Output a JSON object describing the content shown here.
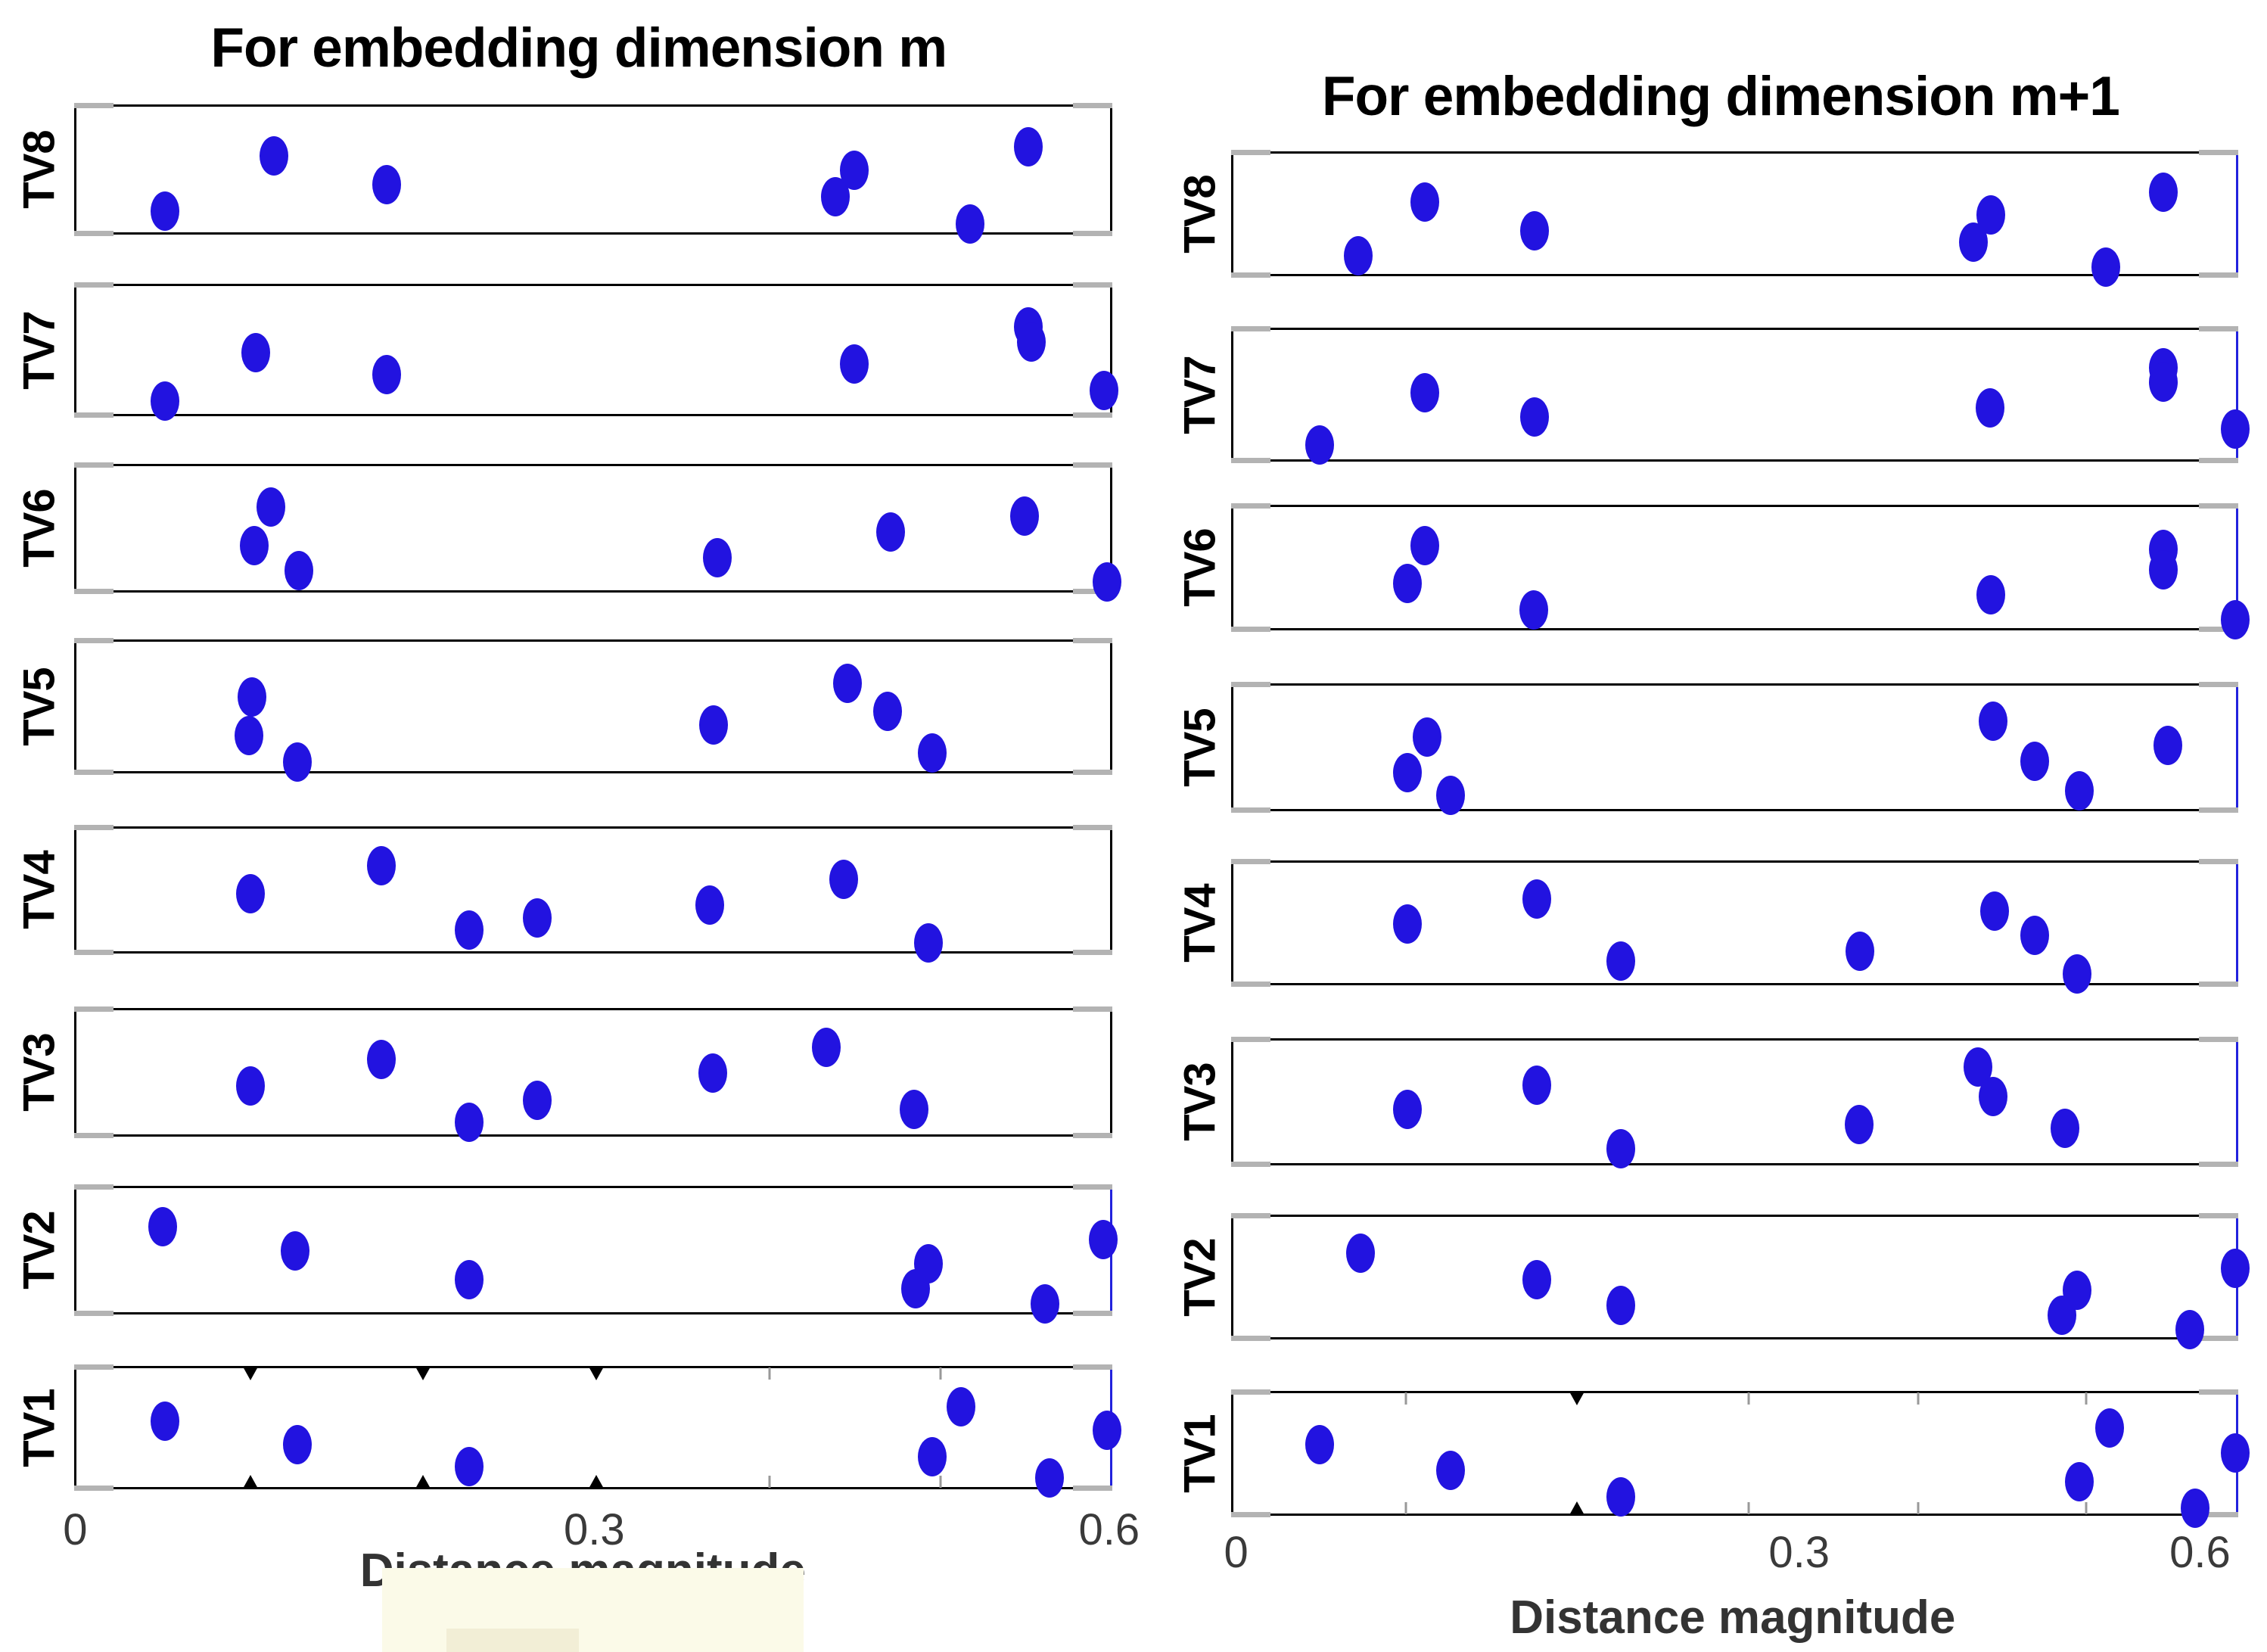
{
  "colors": {
    "background": "#ffffff",
    "dot": "#2213e0",
    "box_border": "#000000",
    "box_border_right_accent": "#2222dd",
    "corner_cap": "#b3b3b3",
    "tick_label": "#3a3a3a",
    "axis_minor_tick": "#999999",
    "watermark_main": "#fbfae8",
    "watermark_small": "#f2eed6"
  },
  "chart_data": [
    {
      "type": "scatter",
      "title": "For embedding dimension m",
      "xlabel": "Distance magnitude",
      "xlim": [
        0,
        0.62
      ],
      "x_tick_labels": [
        {
          "label": "0",
          "f": 0.001
        },
        {
          "label": "0.3",
          "f": 0.501
        },
        {
          "label": "0.6",
          "f": 0.997
        }
      ],
      "axis_marks": [
        {
          "f": 0.168,
          "style": "triangle"
        },
        {
          "f": 0.334,
          "style": "triangle"
        },
        {
          "f": 0.501,
          "style": "triangle"
        },
        {
          "f": 0.668,
          "style": "line"
        },
        {
          "f": 0.832,
          "style": "line"
        }
      ],
      "rows": [
        {
          "label": "TV8",
          "points": [
            {
              "v": 0.05,
              "f": 0.085,
              "j": 0.8
            },
            {
              "v": 0.114,
              "f": 0.19,
              "j": 0.38
            },
            {
              "v": 0.179,
              "f": 0.299,
              "j": 0.6
            },
            {
              "v": 0.44,
              "f": 0.731,
              "j": 0.69
            },
            {
              "v": 0.45,
              "f": 0.749,
              "j": 0.49
            },
            {
              "v": 0.518,
              "f": 0.861,
              "j": 0.9
            },
            {
              "v": 0.552,
              "f": 0.917,
              "j": 0.31
            }
          ]
        },
        {
          "label": "TV7",
          "points": [
            {
              "v": 0.05,
              "f": 0.085,
              "j": 0.87
            },
            {
              "v": 0.103,
              "f": 0.173,
              "j": 0.5
            },
            {
              "v": 0.179,
              "f": 0.299,
              "j": 0.67
            },
            {
              "v": 0.45,
              "f": 0.749,
              "j": 0.59
            },
            {
              "v": 0.552,
              "f": 0.917,
              "j": 0.31
            },
            {
              "v": 0.554,
              "f": 0.92,
              "j": 0.42
            },
            {
              "v": 0.602,
              "f": 0.99,
              "j": 0.79
            }
          ]
        },
        {
          "label": "TV6",
          "points": [
            {
              "v": 0.102,
              "f": 0.171,
              "j": 0.62
            },
            {
              "v": 0.112,
              "f": 0.187,
              "j": 0.32
            },
            {
              "v": 0.128,
              "f": 0.214,
              "j": 0.81
            },
            {
              "v": 0.371,
              "f": 0.617,
              "j": 0.71
            },
            {
              "v": 0.471,
              "f": 0.784,
              "j": 0.51
            },
            {
              "v": 0.549,
              "f": 0.913,
              "j": 0.39
            },
            {
              "v": 0.6,
              "f": 0.993,
              "j": 0.9
            }
          ]
        },
        {
          "label": "TV5",
          "points": [
            {
              "v": 0.099,
              "f": 0.166,
              "j": 0.7
            },
            {
              "v": 0.101,
              "f": 0.169,
              "j": 0.41
            },
            {
              "v": 0.127,
              "f": 0.213,
              "j": 0.9
            },
            {
              "v": 0.369,
              "f": 0.614,
              "j": 0.62
            },
            {
              "v": 0.447,
              "f": 0.743,
              "j": 0.31
            },
            {
              "v": 0.47,
              "f": 0.781,
              "j": 0.52
            },
            {
              "v": 0.496,
              "f": 0.824,
              "j": 0.83
            }
          ]
        },
        {
          "label": "TV4",
          "points": [
            {
              "v": 0.1,
              "f": 0.168,
              "j": 0.51
            },
            {
              "v": 0.176,
              "f": 0.294,
              "j": 0.29
            },
            {
              "v": 0.227,
              "f": 0.378,
              "j": 0.8
            },
            {
              "v": 0.267,
              "f": 0.444,
              "j": 0.7
            },
            {
              "v": 0.367,
              "f": 0.61,
              "j": 0.6
            },
            {
              "v": 0.444,
              "f": 0.739,
              "j": 0.4
            },
            {
              "v": 0.494,
              "f": 0.821,
              "j": 0.9
            }
          ]
        },
        {
          "label": "TV3",
          "points": [
            {
              "v": 0.1,
              "f": 0.168,
              "j": 0.59
            },
            {
              "v": 0.176,
              "f": 0.294,
              "j": 0.38
            },
            {
              "v": 0.227,
              "f": 0.378,
              "j": 0.87
            },
            {
              "v": 0.267,
              "f": 0.444,
              "j": 0.7
            },
            {
              "v": 0.368,
              "f": 0.613,
              "j": 0.49
            },
            {
              "v": 0.434,
              "f": 0.722,
              "j": 0.29
            },
            {
              "v": 0.485,
              "f": 0.807,
              "j": 0.77
            }
          ]
        },
        {
          "label": "TV2",
          "points": [
            {
              "v": 0.049,
              "f": 0.083,
              "j": 0.3
            },
            {
              "v": 0.126,
              "f": 0.211,
              "j": 0.49
            },
            {
              "v": 0.227,
              "f": 0.378,
              "j": 0.71
            },
            {
              "v": 0.486,
              "f": 0.808,
              "j": 0.78
            },
            {
              "v": 0.494,
              "f": 0.821,
              "j": 0.59
            },
            {
              "v": 0.561,
              "f": 0.933,
              "j": 0.9
            },
            {
              "v": 0.595,
              "f": 0.989,
              "j": 0.4
            }
          ]
        },
        {
          "label": "TV1",
          "points": [
            {
              "v": 0.05,
              "f": 0.085,
              "j": 0.43
            },
            {
              "v": 0.127,
              "f": 0.213,
              "j": 0.62
            },
            {
              "v": 0.227,
              "f": 0.378,
              "j": 0.8
            },
            {
              "v": 0.496,
              "f": 0.824,
              "j": 0.72
            },
            {
              "v": 0.512,
              "f": 0.852,
              "j": 0.31
            },
            {
              "v": 0.563,
              "f": 0.937,
              "j": 0.89
            },
            {
              "v": 0.597,
              "f": 0.993,
              "j": 0.5
            }
          ]
        }
      ]
    },
    {
      "type": "scatter",
      "title": "For embedding dimension m+1",
      "xlabel": "Distance magnitude",
      "xlim": [
        0,
        0.62
      ],
      "x_tick_labels": [
        {
          "label": "0",
          "f": 0.005
        },
        {
          "label": "0.3",
          "f": 0.564
        },
        {
          "label": "0.6",
          "f": 0.962
        }
      ],
      "axis_marks": [
        {
          "f": 0.171,
          "style": "line"
        },
        {
          "f": 0.341,
          "style": "triangle"
        },
        {
          "f": 0.512,
          "style": "line"
        },
        {
          "f": 0.68,
          "style": "line"
        },
        {
          "f": 0.847,
          "style": "line"
        }
      ],
      "rows": [
        {
          "label": "TV8",
          "points": [
            {
              "v": 0.064,
              "f": 0.124,
              "j": 0.82
            },
            {
              "v": 0.099,
              "f": 0.19,
              "j": 0.39
            },
            {
              "v": 0.158,
              "f": 0.299,
              "j": 0.62
            },
            {
              "v": 0.428,
              "f": 0.735,
              "j": 0.71
            },
            {
              "v": 0.442,
              "f": 0.752,
              "j": 0.49
            },
            {
              "v": 0.528,
              "f": 0.866,
              "j": 0.91
            },
            {
              "v": 0.57,
              "f": 0.923,
              "j": 0.31
            }
          ]
        },
        {
          "label": "TV7",
          "points": [
            {
              "v": 0.044,
              "f": 0.086,
              "j": 0.86
            },
            {
              "v": 0.099,
              "f": 0.19,
              "j": 0.47
            },
            {
              "v": 0.158,
              "f": 0.299,
              "j": 0.65
            },
            {
              "v": 0.44,
              "f": 0.751,
              "j": 0.58
            },
            {
              "v": 0.57,
              "f": 0.923,
              "j": 0.28
            },
            {
              "v": 0.57,
              "f": 0.923,
              "j": 0.39
            },
            {
              "v": 0.62,
              "f": 0.995,
              "j": 0.74
            }
          ]
        },
        {
          "label": "TV6",
          "points": [
            {
              "v": 0.09,
              "f": 0.173,
              "j": 0.61
            },
            {
              "v": 0.099,
              "f": 0.19,
              "j": 0.31
            },
            {
              "v": 0.157,
              "f": 0.298,
              "j": 0.82
            },
            {
              "v": 0.442,
              "f": 0.752,
              "j": 0.7
            },
            {
              "v": 0.57,
              "f": 0.923,
              "j": 0.34
            },
            {
              "v": 0.57,
              "f": 0.923,
              "j": 0.5
            },
            {
              "v": 0.625,
              "f": 0.995,
              "j": 0.9
            }
          ]
        },
        {
          "label": "TV5",
          "points": [
            {
              "v": 0.09,
              "f": 0.173,
              "j": 0.68
            },
            {
              "v": 0.101,
              "f": 0.192,
              "j": 0.4
            },
            {
              "v": 0.114,
              "f": 0.216,
              "j": 0.86
            },
            {
              "v": 0.443,
              "f": 0.754,
              "j": 0.28
            },
            {
              "v": 0.474,
              "f": 0.796,
              "j": 0.59
            },
            {
              "v": 0.508,
              "f": 0.84,
              "j": 0.82
            },
            {
              "v": 0.574,
              "f": 0.928,
              "j": 0.47
            }
          ]
        },
        {
          "label": "TV4",
          "points": [
            {
              "v": 0.09,
              "f": 0.173,
              "j": 0.49
            },
            {
              "v": 0.159,
              "f": 0.301,
              "j": 0.29
            },
            {
              "v": 0.204,
              "f": 0.385,
              "j": 0.79
            },
            {
              "v": 0.344,
              "f": 0.622,
              "j": 0.71
            },
            {
              "v": 0.444,
              "f": 0.756,
              "j": 0.39
            },
            {
              "v": 0.474,
              "f": 0.796,
              "j": 0.58
            },
            {
              "v": 0.506,
              "f": 0.838,
              "j": 0.89
            }
          ]
        },
        {
          "label": "TV3",
          "points": [
            {
              "v": 0.09,
              "f": 0.173,
              "j": 0.54
            },
            {
              "v": 0.159,
              "f": 0.301,
              "j": 0.35
            },
            {
              "v": 0.204,
              "f": 0.385,
              "j": 0.85
            },
            {
              "v": 0.342,
              "f": 0.621,
              "j": 0.66
            },
            {
              "v": 0.432,
              "f": 0.739,
              "j": 0.21
            },
            {
              "v": 0.443,
              "f": 0.754,
              "j": 0.44
            },
            {
              "v": 0.497,
              "f": 0.826,
              "j": 0.69
            }
          ]
        },
        {
          "label": "TV2",
          "points": [
            {
              "v": 0.065,
              "f": 0.126,
              "j": 0.29
            },
            {
              "v": 0.159,
              "f": 0.301,
              "j": 0.5
            },
            {
              "v": 0.204,
              "f": 0.385,
              "j": 0.71
            },
            {
              "v": 0.494,
              "f": 0.823,
              "j": 0.79
            },
            {
              "v": 0.506,
              "f": 0.838,
              "j": 0.59
            },
            {
              "v": 0.591,
              "f": 0.95,
              "j": 0.9
            },
            {
              "v": 0.62,
              "f": 0.995,
              "j": 0.41
            }
          ]
        },
        {
          "label": "TV1",
          "points": [
            {
              "v": 0.044,
              "f": 0.086,
              "j": 0.41
            },
            {
              "v": 0.114,
              "f": 0.216,
              "j": 0.62
            },
            {
              "v": 0.204,
              "f": 0.385,
              "j": 0.83
            },
            {
              "v": 0.508,
              "f": 0.84,
              "j": 0.71
            },
            {
              "v": 0.53,
              "f": 0.87,
              "j": 0.28
            },
            {
              "v": 0.594,
              "f": 0.955,
              "j": 0.92
            },
            {
              "v": 0.62,
              "f": 0.995,
              "j": 0.48
            }
          ]
        }
      ]
    }
  ]
}
